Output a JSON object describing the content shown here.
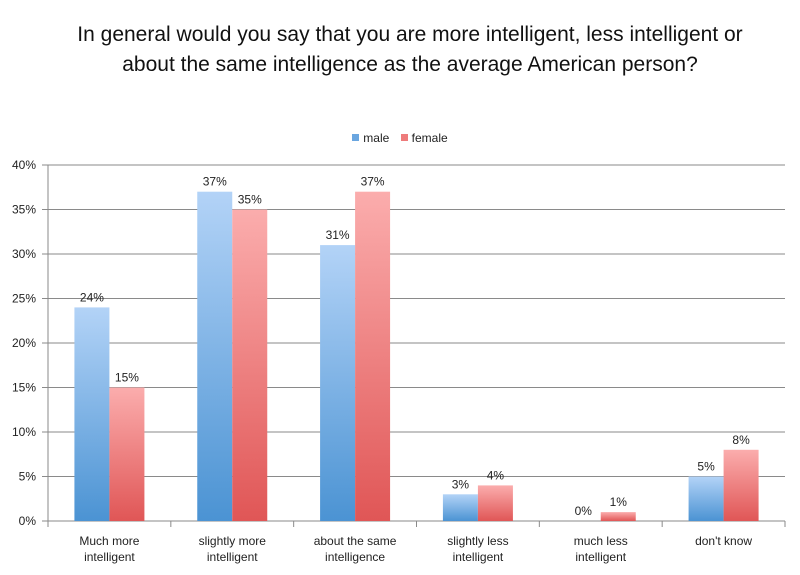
{
  "chart_data": {
    "type": "bar",
    "title": "In general would you say that you are more intelligent, less intelligent or about the same intelligence as the average American person?",
    "categories": [
      [
        "Much more",
        "intelligent"
      ],
      [
        "slightly more",
        "intelligent"
      ],
      [
        "about the same",
        "intelligence"
      ],
      [
        "slightly less",
        "intelligent"
      ],
      [
        "much less",
        "intelligent"
      ],
      [
        "don't know"
      ]
    ],
    "series": [
      {
        "name": "male",
        "values": [
          24,
          37,
          31,
          3,
          0,
          5
        ],
        "labels": [
          "24%",
          "37%",
          "31%",
          "3%",
          "0%",
          "5%"
        ],
        "color_top": "#b3d3f7",
        "color_bottom": "#4b93d3"
      },
      {
        "name": "female",
        "values": [
          15,
          35,
          37,
          4,
          1,
          8
        ],
        "labels": [
          "15%",
          "35%",
          "37%",
          "4%",
          "1%",
          "8%"
        ],
        "color_top": "#fbadad",
        "color_bottom": "#e05656"
      }
    ],
    "ylim": [
      0,
      40
    ],
    "yticks": [
      0,
      5,
      10,
      15,
      20,
      25,
      30,
      35,
      40
    ],
    "ytick_labels": [
      "0%",
      "5%",
      "10%",
      "15%",
      "20%",
      "25%",
      "30%",
      "35%",
      "40%"
    ],
    "xlabel": "",
    "ylabel": "",
    "grid": true,
    "legend_position": "top-center"
  }
}
